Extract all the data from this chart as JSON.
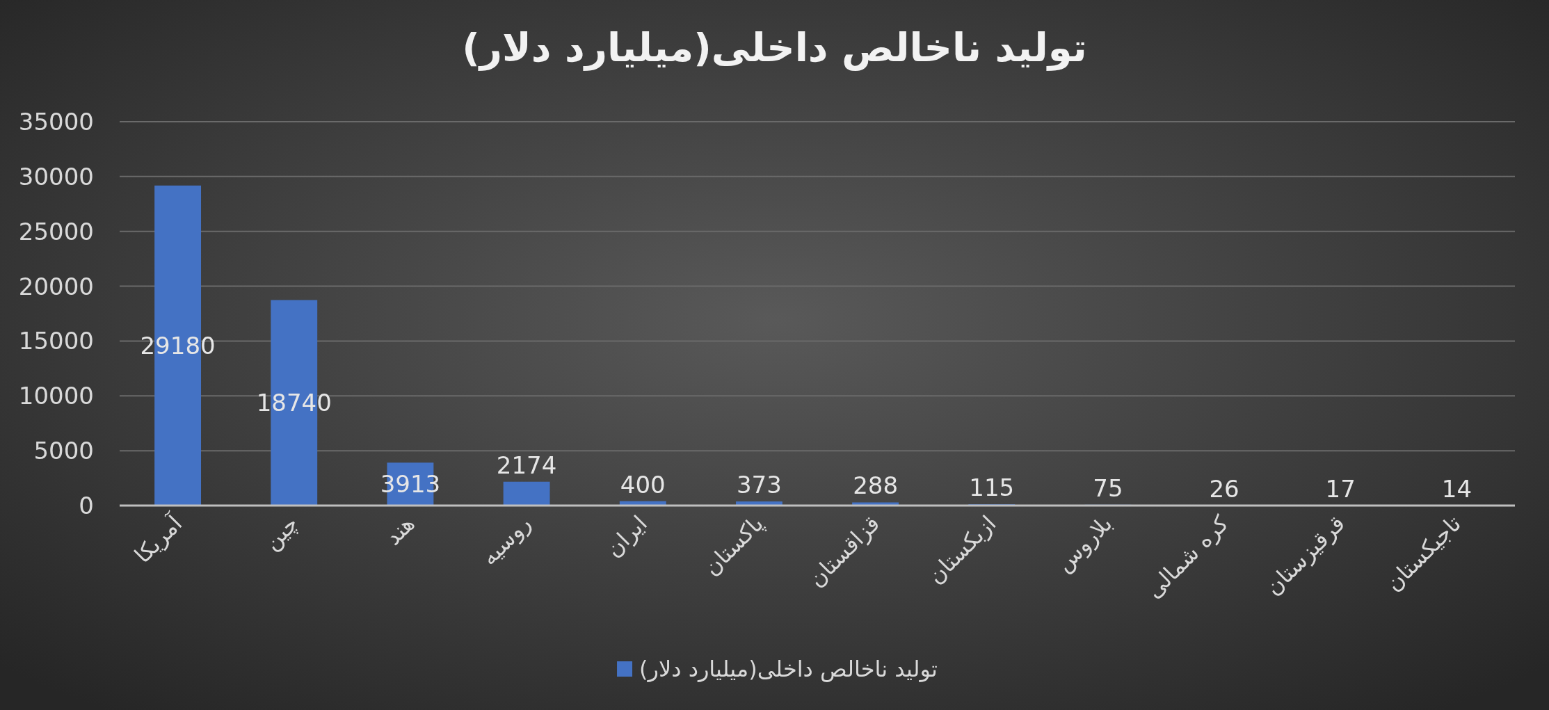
{
  "chart_data": {
    "type": "bar",
    "title": "تولید ناخالص داخلی(میلیارد دلار)",
    "categories": [
      "آمریکا",
      "چین",
      "هند",
      "روسیه",
      "ایران",
      "پاکستان",
      "قزاقستان",
      "ازبکستان",
      "بلاروس",
      "کره شمالی",
      "قرقیزستان",
      "تاجیکستان"
    ],
    "series": [
      {
        "name": "تولید ناخالص داخلی(میلیارد دلار)",
        "color": "#4472c4",
        "values": [
          29180,
          18740,
          3913,
          2174,
          400,
          373,
          288,
          115,
          75,
          26,
          17,
          14
        ]
      }
    ],
    "ylim": [
      0,
      35000
    ],
    "yticks": [
      0,
      5000,
      10000,
      15000,
      20000,
      25000,
      30000,
      35000
    ],
    "grid": "y",
    "legend": "bottom",
    "data_labels": true
  }
}
